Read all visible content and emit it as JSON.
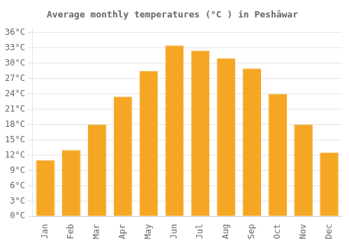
{
  "chart_data": {
    "type": "bar",
    "title": "Average monthly temperatures (°C ) in Peshāwar",
    "categories": [
      "Jan",
      "Feb",
      "Mar",
      "Apr",
      "May",
      "Jun",
      "Jul",
      "Aug",
      "Sep",
      "Oct",
      "Nov",
      "Dec"
    ],
    "values": [
      11,
      13,
      18,
      23.5,
      28.5,
      33.5,
      32.5,
      31,
      29,
      24,
      18,
      12.5
    ],
    "color": "#F5A623",
    "ylim": [
      0,
      37
    ],
    "yticks": [
      {
        "value": 0,
        "label": "0°C"
      },
      {
        "value": 3,
        "label": "3°C"
      },
      {
        "value": 6,
        "label": "6°C"
      },
      {
        "value": 9,
        "label": "9°C"
      },
      {
        "value": 12,
        "label": "12°C"
      },
      {
        "value": 15,
        "label": "15°C"
      },
      {
        "value": 18,
        "label": "18°C"
      },
      {
        "value": 21,
        "label": "21°C"
      },
      {
        "value": 24,
        "label": "24°C"
      },
      {
        "value": 27,
        "label": "27°C"
      },
      {
        "value": 30,
        "label": "30°C"
      },
      {
        "value": 33,
        "label": "33°C"
      },
      {
        "value": 36,
        "label": "36°C"
      }
    ],
    "grid": true
  }
}
